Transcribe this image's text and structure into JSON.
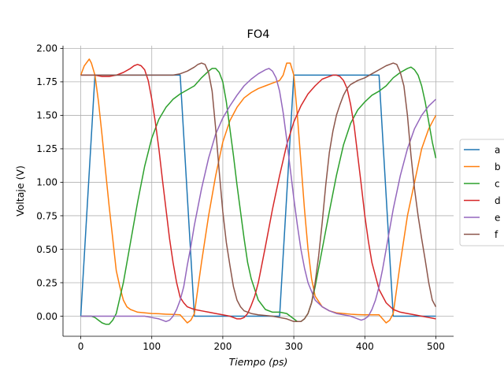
{
  "chart_data": {
    "type": "line",
    "title": "FO4",
    "xlabel": "Tiempo (ps)",
    "ylabel": "Voltaje (V)",
    "xlim": [
      -25,
      525
    ],
    "ylim": [
      -0.15,
      2.02
    ],
    "xticks": [
      0,
      100,
      200,
      300,
      400,
      500
    ],
    "yticks": [
      0.0,
      0.25,
      0.5,
      0.75,
      1.0,
      1.25,
      1.5,
      1.75,
      2.0
    ],
    "xtick_labels": [
      "0",
      "100",
      "200",
      "300",
      "400",
      "500"
    ],
    "ytick_labels": [
      "0.00",
      "0.25",
      "0.50",
      "0.75",
      "1.00",
      "1.25",
      "1.50",
      "1.75",
      "2.00"
    ],
    "grid": true,
    "legend_position": "center-right",
    "series": [
      {
        "name": "a",
        "color": "#1f77b4",
        "x": [
          0,
          20,
          140,
          160,
          280,
          300,
          420,
          440,
          500
        ],
        "y": [
          0,
          1.8,
          1.8,
          0,
          0,
          1.8,
          1.8,
          0,
          0
        ]
      },
      {
        "name": "b",
        "color": "#ff7f0e",
        "x": [
          0,
          5,
          12,
          15,
          20,
          25,
          30,
          35,
          40,
          45,
          50,
          55,
          60,
          65,
          70,
          75,
          80,
          90,
          100,
          110,
          120,
          130,
          140,
          145,
          150,
          155,
          160,
          170,
          180,
          190,
          200,
          210,
          220,
          230,
          240,
          250,
          260,
          270,
          280,
          285,
          290,
          295,
          300,
          305,
          310,
          315,
          320,
          325,
          330,
          340,
          350,
          360,
          370,
          380,
          390,
          400,
          410,
          420,
          425,
          430,
          435,
          440,
          450,
          460,
          470,
          480,
          490,
          500
        ],
        "y": [
          1.8,
          1.87,
          1.92,
          1.89,
          1.8,
          1.6,
          1.35,
          1.08,
          0.82,
          0.58,
          0.34,
          0.22,
          0.12,
          0.07,
          0.05,
          0.04,
          0.03,
          0.025,
          0.02,
          0.018,
          0.015,
          0.013,
          0.01,
          -0.02,
          -0.05,
          -0.03,
          0.02,
          0.4,
          0.75,
          1.05,
          1.3,
          1.46,
          1.56,
          1.63,
          1.67,
          1.7,
          1.72,
          1.74,
          1.76,
          1.8,
          1.89,
          1.89,
          1.8,
          1.5,
          1.15,
          0.8,
          0.5,
          0.28,
          0.15,
          0.07,
          0.04,
          0.025,
          0.02,
          0.015,
          0.012,
          0.01,
          0.01,
          0.01,
          -0.02,
          -0.05,
          -0.03,
          0.02,
          0.4,
          0.75,
          1.0,
          1.25,
          1.4,
          1.5
        ]
      },
      {
        "name": "c",
        "color": "#2ca02c",
        "x": [
          0,
          10,
          15,
          20,
          25,
          30,
          35,
          40,
          45,
          50,
          60,
          70,
          80,
          90,
          100,
          110,
          120,
          130,
          140,
          150,
          160,
          170,
          180,
          185,
          190,
          195,
          200,
          205,
          210,
          215,
          220,
          225,
          230,
          235,
          240,
          250,
          260,
          270,
          280,
          290,
          300,
          305,
          310,
          315,
          320,
          325,
          330,
          340,
          350,
          360,
          370,
          380,
          390,
          400,
          410,
          420,
          430,
          440,
          450,
          460,
          465,
          470,
          475,
          480,
          485,
          490,
          495,
          500
        ],
        "y": [
          0,
          0,
          0,
          -0.01,
          -0.03,
          -0.05,
          -0.06,
          -0.06,
          -0.03,
          0.02,
          0.25,
          0.55,
          0.85,
          1.12,
          1.33,
          1.47,
          1.56,
          1.62,
          1.66,
          1.69,
          1.72,
          1.78,
          1.83,
          1.85,
          1.85,
          1.82,
          1.75,
          1.6,
          1.4,
          1.2,
          0.98,
          0.78,
          0.58,
          0.4,
          0.28,
          0.12,
          0.05,
          0.03,
          0.03,
          0.02,
          -0.02,
          -0.04,
          -0.04,
          -0.02,
          0.02,
          0.1,
          0.22,
          0.5,
          0.78,
          1.05,
          1.28,
          1.44,
          1.54,
          1.6,
          1.65,
          1.68,
          1.72,
          1.78,
          1.82,
          1.85,
          1.86,
          1.84,
          1.8,
          1.72,
          1.6,
          1.45,
          1.3,
          1.18
        ]
      },
      {
        "name": "d",
        "color": "#d62728",
        "x": [
          0,
          20,
          30,
          40,
          50,
          60,
          70,
          75,
          80,
          85,
          90,
          95,
          100,
          105,
          110,
          115,
          120,
          125,
          130,
          135,
          140,
          145,
          150,
          155,
          160,
          170,
          180,
          190,
          200,
          210,
          215,
          220,
          225,
          230,
          235,
          240,
          245,
          250,
          260,
          270,
          280,
          290,
          300,
          310,
          320,
          330,
          340,
          350,
          355,
          360,
          365,
          370,
          375,
          380,
          385,
          390,
          395,
          400,
          405,
          410,
          420,
          430,
          440,
          450,
          460,
          470,
          480,
          490,
          500
        ],
        "y": [
          1.8,
          1.8,
          1.79,
          1.79,
          1.8,
          1.82,
          1.85,
          1.87,
          1.88,
          1.87,
          1.84,
          1.76,
          1.62,
          1.45,
          1.25,
          1.02,
          0.8,
          0.58,
          0.4,
          0.25,
          0.14,
          0.1,
          0.07,
          0.06,
          0.05,
          0.04,
          0.03,
          0.02,
          0.01,
          0,
          -0.01,
          -0.02,
          -0.02,
          -0.01,
          0.02,
          0.08,
          0.15,
          0.25,
          0.52,
          0.8,
          1.05,
          1.28,
          1.45,
          1.57,
          1.66,
          1.72,
          1.77,
          1.79,
          1.8,
          1.8,
          1.79,
          1.76,
          1.7,
          1.58,
          1.42,
          1.2,
          0.98,
          0.75,
          0.56,
          0.4,
          0.2,
          0.1,
          0.05,
          0.03,
          0.02,
          0.01,
          0,
          -0.01,
          -0.02
        ]
      },
      {
        "name": "e",
        "color": "#9467bd",
        "x": [
          0,
          10,
          20,
          40,
          60,
          80,
          90,
          100,
          110,
          115,
          120,
          125,
          130,
          135,
          140,
          145,
          150,
          155,
          160,
          170,
          180,
          190,
          200,
          210,
          220,
          230,
          240,
          250,
          260,
          265,
          270,
          275,
          280,
          285,
          290,
          295,
          300,
          305,
          310,
          315,
          320,
          330,
          340,
          350,
          360,
          370,
          380,
          385,
          390,
          395,
          400,
          405,
          410,
          415,
          420,
          425,
          430,
          440,
          450,
          460,
          470,
          480,
          490,
          500
        ],
        "y": [
          0,
          0,
          0,
          0,
          0,
          0,
          0,
          -0.01,
          -0.02,
          -0.03,
          -0.04,
          -0.03,
          0,
          0.05,
          0.12,
          0.22,
          0.38,
          0.52,
          0.68,
          0.95,
          1.18,
          1.36,
          1.48,
          1.57,
          1.65,
          1.72,
          1.77,
          1.81,
          1.84,
          1.85,
          1.83,
          1.78,
          1.68,
          1.52,
          1.32,
          1.1,
          0.88,
          0.68,
          0.5,
          0.36,
          0.25,
          0.12,
          0.07,
          0.04,
          0.02,
          0.01,
          0,
          -0.01,
          -0.02,
          -0.03,
          -0.02,
          0,
          0.05,
          0.12,
          0.22,
          0.35,
          0.5,
          0.8,
          1.05,
          1.25,
          1.4,
          1.5,
          1.57,
          1.62
        ]
      },
      {
        "name": "f",
        "color": "#8c564b",
        "x": [
          0,
          50,
          100,
          120,
          130,
          140,
          150,
          160,
          165,
          170,
          175,
          180,
          185,
          190,
          195,
          200,
          205,
          210,
          215,
          220,
          225,
          230,
          240,
          250,
          260,
          270,
          280,
          290,
          300,
          310,
          315,
          320,
          325,
          330,
          335,
          340,
          345,
          350,
          355,
          360,
          365,
          370,
          375,
          380,
          390,
          400,
          410,
          420,
          430,
          435,
          440,
          445,
          450,
          455,
          460,
          465,
          470,
          475,
          480,
          485,
          490,
          495,
          500
        ],
        "y": [
          1.8,
          1.8,
          1.8,
          1.8,
          1.8,
          1.81,
          1.83,
          1.86,
          1.88,
          1.89,
          1.88,
          1.82,
          1.68,
          1.4,
          1.08,
          0.78,
          0.55,
          0.38,
          0.22,
          0.12,
          0.07,
          0.04,
          0.02,
          0.01,
          0.005,
          0,
          -0.01,
          -0.02,
          -0.04,
          -0.04,
          -0.02,
          0.02,
          0.1,
          0.25,
          0.45,
          0.7,
          0.98,
          1.22,
          1.38,
          1.5,
          1.58,
          1.65,
          1.7,
          1.73,
          1.76,
          1.78,
          1.81,
          1.84,
          1.87,
          1.88,
          1.89,
          1.88,
          1.82,
          1.72,
          1.5,
          1.2,
          0.95,
          0.75,
          0.58,
          0.42,
          0.25,
          0.12,
          0.07
        ]
      }
    ]
  }
}
